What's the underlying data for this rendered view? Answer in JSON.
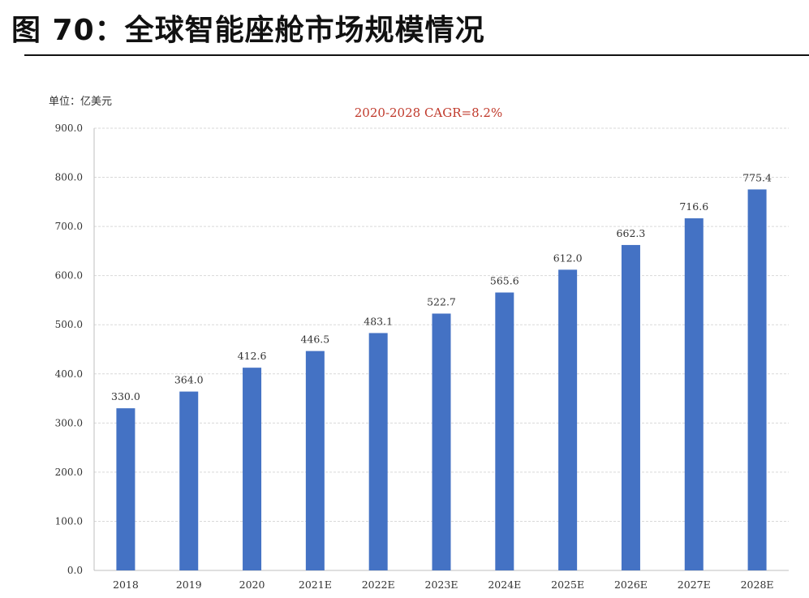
{
  "figure_title": "图 70：全球智能座舱市场规模情况",
  "colors": {
    "bar": "#4472C4",
    "annotation": "#C0392B",
    "grid": "#D9D9D9",
    "text": "#333333"
  },
  "chart_data": {
    "type": "bar",
    "title": "",
    "annotation": "2020-2028 CAGR=8.2%",
    "unit_label": "单位：亿美元",
    "xlabel": "",
    "ylabel": "",
    "ylim": [
      0,
      900
    ],
    "yticks": [
      "0.0",
      "100.0",
      "200.0",
      "300.0",
      "400.0",
      "500.0",
      "600.0",
      "700.0",
      "800.0",
      "900.0"
    ],
    "grid": true,
    "categories": [
      "2018",
      "2019",
      "2020",
      "2021E",
      "2022E",
      "2023E",
      "2024E",
      "2025E",
      "2026E",
      "2027E",
      "2028E"
    ],
    "values": [
      330.0,
      364.0,
      412.6,
      446.5,
      483.1,
      522.7,
      565.6,
      612.0,
      662.3,
      716.6,
      775.4
    ],
    "value_labels": [
      "330.0",
      "364.0",
      "412.6",
      "446.5",
      "483.1",
      "522.7",
      "565.6",
      "612.0",
      "662.3",
      "716.6",
      "775.4"
    ]
  }
}
